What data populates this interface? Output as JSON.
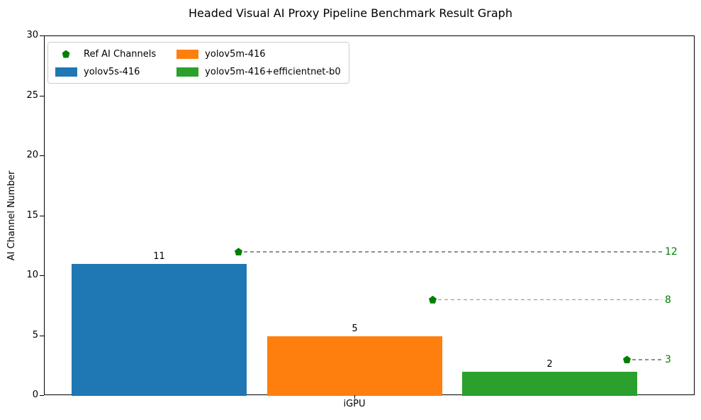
{
  "chart_data": {
    "type": "bar",
    "title": "Headed Visual AI Proxy Pipeline Benchmark Result Graph",
    "ylabel": "AI Channel Number",
    "xlabel": "",
    "categories": [
      "iGPU"
    ],
    "ylim": [
      0,
      30
    ],
    "yticks": [
      0,
      5,
      10,
      15,
      20,
      25,
      30
    ],
    "grid": false,
    "series": [
      {
        "name": "yolov5s-416",
        "color": "#1f77b4",
        "values": [
          11
        ]
      },
      {
        "name": "yolov5m-416",
        "color": "#ff7f0e",
        "values": [
          5
        ]
      },
      {
        "name": "yolov5m-416+efficientnet-b0",
        "color": "#2ca02c",
        "values": [
          2
        ]
      }
    ],
    "ref_markers": {
      "name": "Ref AI Channels",
      "marker": "pentagon",
      "color": "#008000",
      "line_color": "#909090",
      "line_style": "dashed",
      "values": [
        12,
        8,
        3
      ]
    },
    "legend": {
      "position": "upper left",
      "entries": [
        {
          "label": "Ref AI Channels",
          "marker": "pentagon",
          "color": "#008000"
        },
        {
          "label": "yolov5s-416",
          "marker": "swatch",
          "color": "#1f77b4"
        },
        {
          "label": "yolov5m-416",
          "marker": "swatch",
          "color": "#ff7f0e"
        },
        {
          "label": "yolov5m-416+efficientnet-b0",
          "marker": "swatch",
          "color": "#2ca02c"
        }
      ]
    }
  }
}
